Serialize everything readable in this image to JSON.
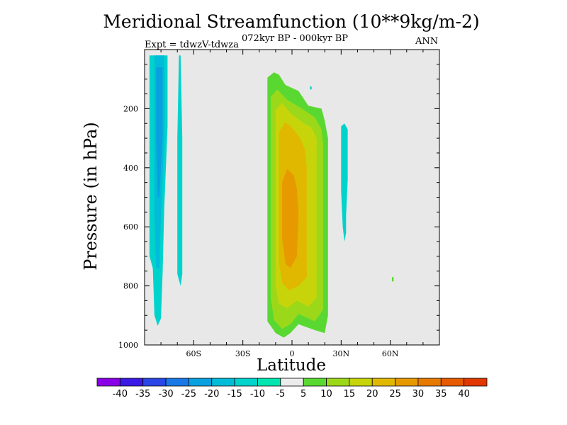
{
  "header": {
    "title": "Meridional Streamfunction (10**9kg/m-2)",
    "subtitle": "072kyr BP - 000kyr BP",
    "expt": "Expt = tdwzV-tdwza",
    "season": "ANN"
  },
  "chart_data": {
    "type": "heatmap",
    "title": "Meridional Streamfunction (10**9kg/m-2)",
    "subtitle": "072kyr BP - 000kyr BP",
    "xlabel": "Latitude",
    "ylabel": "Pressure (in hPa)",
    "xlim": [
      -90,
      90
    ],
    "ylim": [
      1000,
      0
    ],
    "x_ticks": [
      {
        "value": -60,
        "label": "60S"
      },
      {
        "value": -30,
        "label": "30S"
      },
      {
        "value": 0,
        "label": "0"
      },
      {
        "value": 30,
        "label": "30N"
      },
      {
        "value": 60,
        "label": "60N"
      }
    ],
    "y_ticks": [
      {
        "value": 200,
        "label": "200"
      },
      {
        "value": 400,
        "label": "400"
      },
      {
        "value": 600,
        "label": "600"
      },
      {
        "value": 800,
        "label": "800"
      },
      {
        "value": 1000,
        "label": "1000"
      }
    ],
    "levels": [
      -40,
      -35,
      -30,
      -25,
      -20,
      -15,
      -10,
      -5,
      5,
      10,
      15,
      20,
      25,
      30,
      35,
      40
    ],
    "colorbar_labels": [
      "-40",
      "-35",
      "-30",
      "-25",
      "-20",
      "-15",
      "-10",
      "-5",
      "5",
      "10",
      "15",
      "20",
      "25",
      "30",
      "35",
      "40"
    ],
    "colors": [
      "#8a00e6",
      "#3b1ae6",
      "#2a46e6",
      "#1a78e6",
      "#0aa0e0",
      "#00bcd8",
      "#00d2cc",
      "#00e4b0",
      "#ececec",
      "#5ad832",
      "#9cd81a",
      "#c8d40a",
      "#e0b800",
      "#e69a00",
      "#e67a00",
      "#e65a00",
      "#e03800"
    ],
    "background_color": "#e8e8e8",
    "features": [
      {
        "name": "southern-cell-outer",
        "sign": "negative",
        "level": "-10 to -5",
        "outline": [
          [
            -87,
            20
          ],
          [
            -76,
            20
          ],
          [
            -76,
            260
          ],
          [
            -78,
            540
          ],
          [
            -79,
            760
          ],
          [
            -80,
            910
          ],
          [
            -82,
            935
          ],
          [
            -84,
            900
          ],
          [
            -85,
            740
          ],
          [
            -87,
            700
          ]
        ]
      },
      {
        "name": "southern-cell-mid",
        "sign": "negative",
        "level": "-15 to -10",
        "outline": [
          [
            -84,
            20
          ],
          [
            -78,
            20
          ],
          [
            -78,
            300
          ],
          [
            -80,
            560
          ],
          [
            -81,
            740
          ],
          [
            -83,
            740
          ],
          [
            -84,
            560
          ]
        ]
      },
      {
        "name": "southern-cell-core",
        "sign": "negative",
        "level": "-20 to -15",
        "outline": [
          [
            -83,
            60
          ],
          [
            -79,
            60
          ],
          [
            -79,
            300
          ],
          [
            -81,
            500
          ],
          [
            -82,
            500
          ],
          [
            -83,
            300
          ]
        ]
      },
      {
        "name": "southern-band-60s",
        "sign": "negative",
        "level": "-10 to -5",
        "outline": [
          [
            -69,
            20
          ],
          [
            -68,
            20
          ],
          [
            -67,
            300
          ],
          [
            -67,
            760
          ],
          [
            -68,
            800
          ],
          [
            -70,
            760
          ],
          [
            -70,
            300
          ]
        ]
      },
      {
        "name": "tropical-cell-outer",
        "sign": "positive",
        "level": "5 to 10",
        "outline": [
          [
            -15,
            95
          ],
          [
            -11,
            77
          ],
          [
            -8,
            85
          ],
          [
            -4,
            120
          ],
          [
            4,
            140
          ],
          [
            10,
            190
          ],
          [
            18,
            200
          ],
          [
            20,
            240
          ],
          [
            22,
            300
          ],
          [
            22,
            900
          ],
          [
            20,
            960
          ],
          [
            14,
            950
          ],
          [
            4,
            930
          ],
          [
            -1,
            960
          ],
          [
            -5,
            975
          ],
          [
            -10,
            960
          ],
          [
            -15,
            920
          ],
          [
            -15,
            100
          ]
        ]
      },
      {
        "name": "tropical-cell-10",
        "sign": "positive",
        "level": "10 to 15",
        "outline": [
          [
            -13,
            160
          ],
          [
            -9,
            135
          ],
          [
            -3,
            170
          ],
          [
            6,
            200
          ],
          [
            14,
            230
          ],
          [
            18,
            270
          ],
          [
            19,
            320
          ],
          [
            19,
            880
          ],
          [
            14,
            920
          ],
          [
            4,
            895
          ],
          [
            -1,
            930
          ],
          [
            -6,
            945
          ],
          [
            -11,
            915
          ],
          [
            -13,
            840
          ]
        ]
      },
      {
        "name": "tropical-cell-15",
        "sign": "positive",
        "level": "15 to 20",
        "outline": [
          [
            -10,
            205
          ],
          [
            -6,
            180
          ],
          [
            -1,
            215
          ],
          [
            6,
            245
          ],
          [
            12,
            265
          ],
          [
            15,
            300
          ],
          [
            15,
            840
          ],
          [
            10,
            870
          ],
          [
            3,
            850
          ],
          [
            -3,
            875
          ],
          [
            -8,
            860
          ],
          [
            -10,
            800
          ]
        ]
      },
      {
        "name": "tropical-cell-20",
        "sign": "positive",
        "level": "20 to 25",
        "outline": [
          [
            -8,
            280
          ],
          [
            -4,
            245
          ],
          [
            0,
            265
          ],
          [
            5,
            300
          ],
          [
            8,
            340
          ],
          [
            9,
            400
          ],
          [
            9,
            770
          ],
          [
            4,
            800
          ],
          [
            -2,
            815
          ],
          [
            -6,
            790
          ],
          [
            -8,
            720
          ]
        ]
      },
      {
        "name": "tropical-cell-core",
        "sign": "positive",
        "level": "25 to 30",
        "outline": [
          [
            -6,
            450
          ],
          [
            -3,
            405
          ],
          [
            1,
            425
          ],
          [
            3,
            470
          ],
          [
            4,
            560
          ],
          [
            3,
            700
          ],
          [
            -1,
            740
          ],
          [
            -4,
            725
          ],
          [
            -6,
            640
          ]
        ]
      },
      {
        "name": "northern-negative-band",
        "sign": "negative",
        "level": "-10 to -5",
        "outline": [
          [
            30,
            260
          ],
          [
            32,
            250
          ],
          [
            34,
            270
          ],
          [
            34,
            440
          ],
          [
            33,
            560
          ],
          [
            33,
            620
          ],
          [
            32,
            650
          ],
          [
            31,
            600
          ],
          [
            30,
            480
          ]
        ]
      },
      {
        "name": "small-negative-speck",
        "sign": "negative",
        "level": "-10 to -5",
        "outline": [
          [
            11,
            125
          ],
          [
            12,
            125
          ],
          [
            12,
            135
          ],
          [
            11,
            135
          ]
        ]
      },
      {
        "name": "small-positive-speck",
        "sign": "positive",
        "level": "5 to 10",
        "outline": [
          [
            61,
            770
          ],
          [
            62,
            770
          ],
          [
            62,
            785
          ],
          [
            61,
            785
          ]
        ]
      }
    ]
  }
}
